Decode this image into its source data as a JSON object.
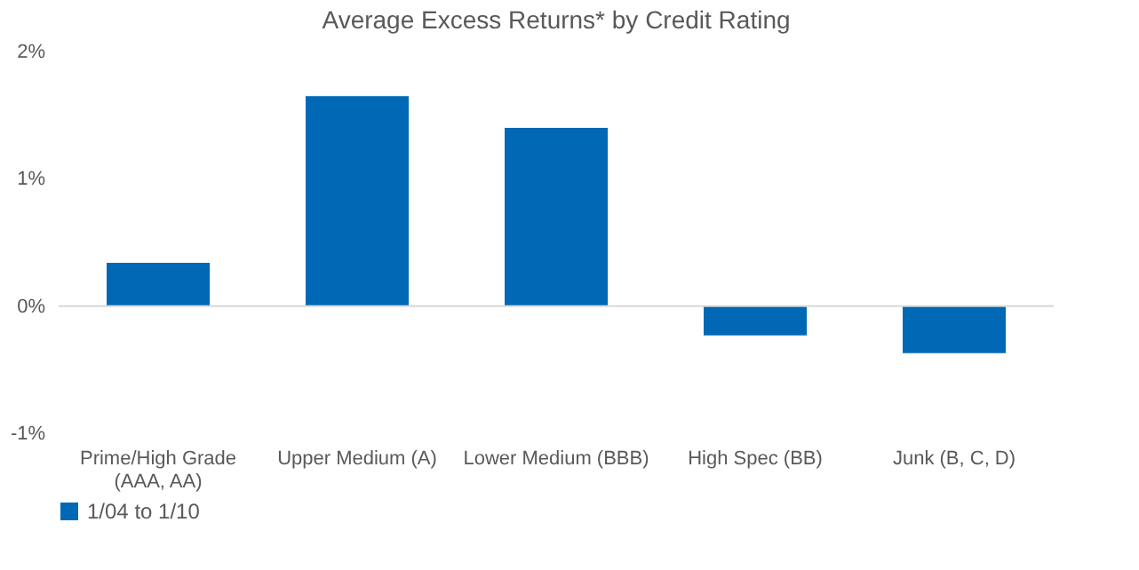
{
  "chart_data": {
    "type": "bar",
    "title": "Average Excess Returns* by Credit Rating",
    "categories": [
      "Prime/High Grade (AAA, AA)",
      "Upper Medium (A)",
      "Lower Medium (BBB)",
      "High Spec (BB)",
      "Junk (B, C, D)"
    ],
    "series": [
      {
        "name": "1/04 to 1/10",
        "color": "#0068b5",
        "values": [
          0.34,
          1.65,
          1.4,
          -0.23,
          -0.37
        ]
      }
    ],
    "ylim": [
      -1,
      2
    ],
    "yticks": [
      {
        "value": -1,
        "label": "-1%"
      },
      {
        "value": 0,
        "label": "0%"
      },
      {
        "value": 1,
        "label": "1%"
      },
      {
        "value": 2,
        "label": "2%"
      }
    ],
    "ref_lines": [
      {
        "axis": "y",
        "value": 0,
        "color": "#d9d9d9"
      }
    ],
    "grid": false,
    "legend": "bottom"
  }
}
